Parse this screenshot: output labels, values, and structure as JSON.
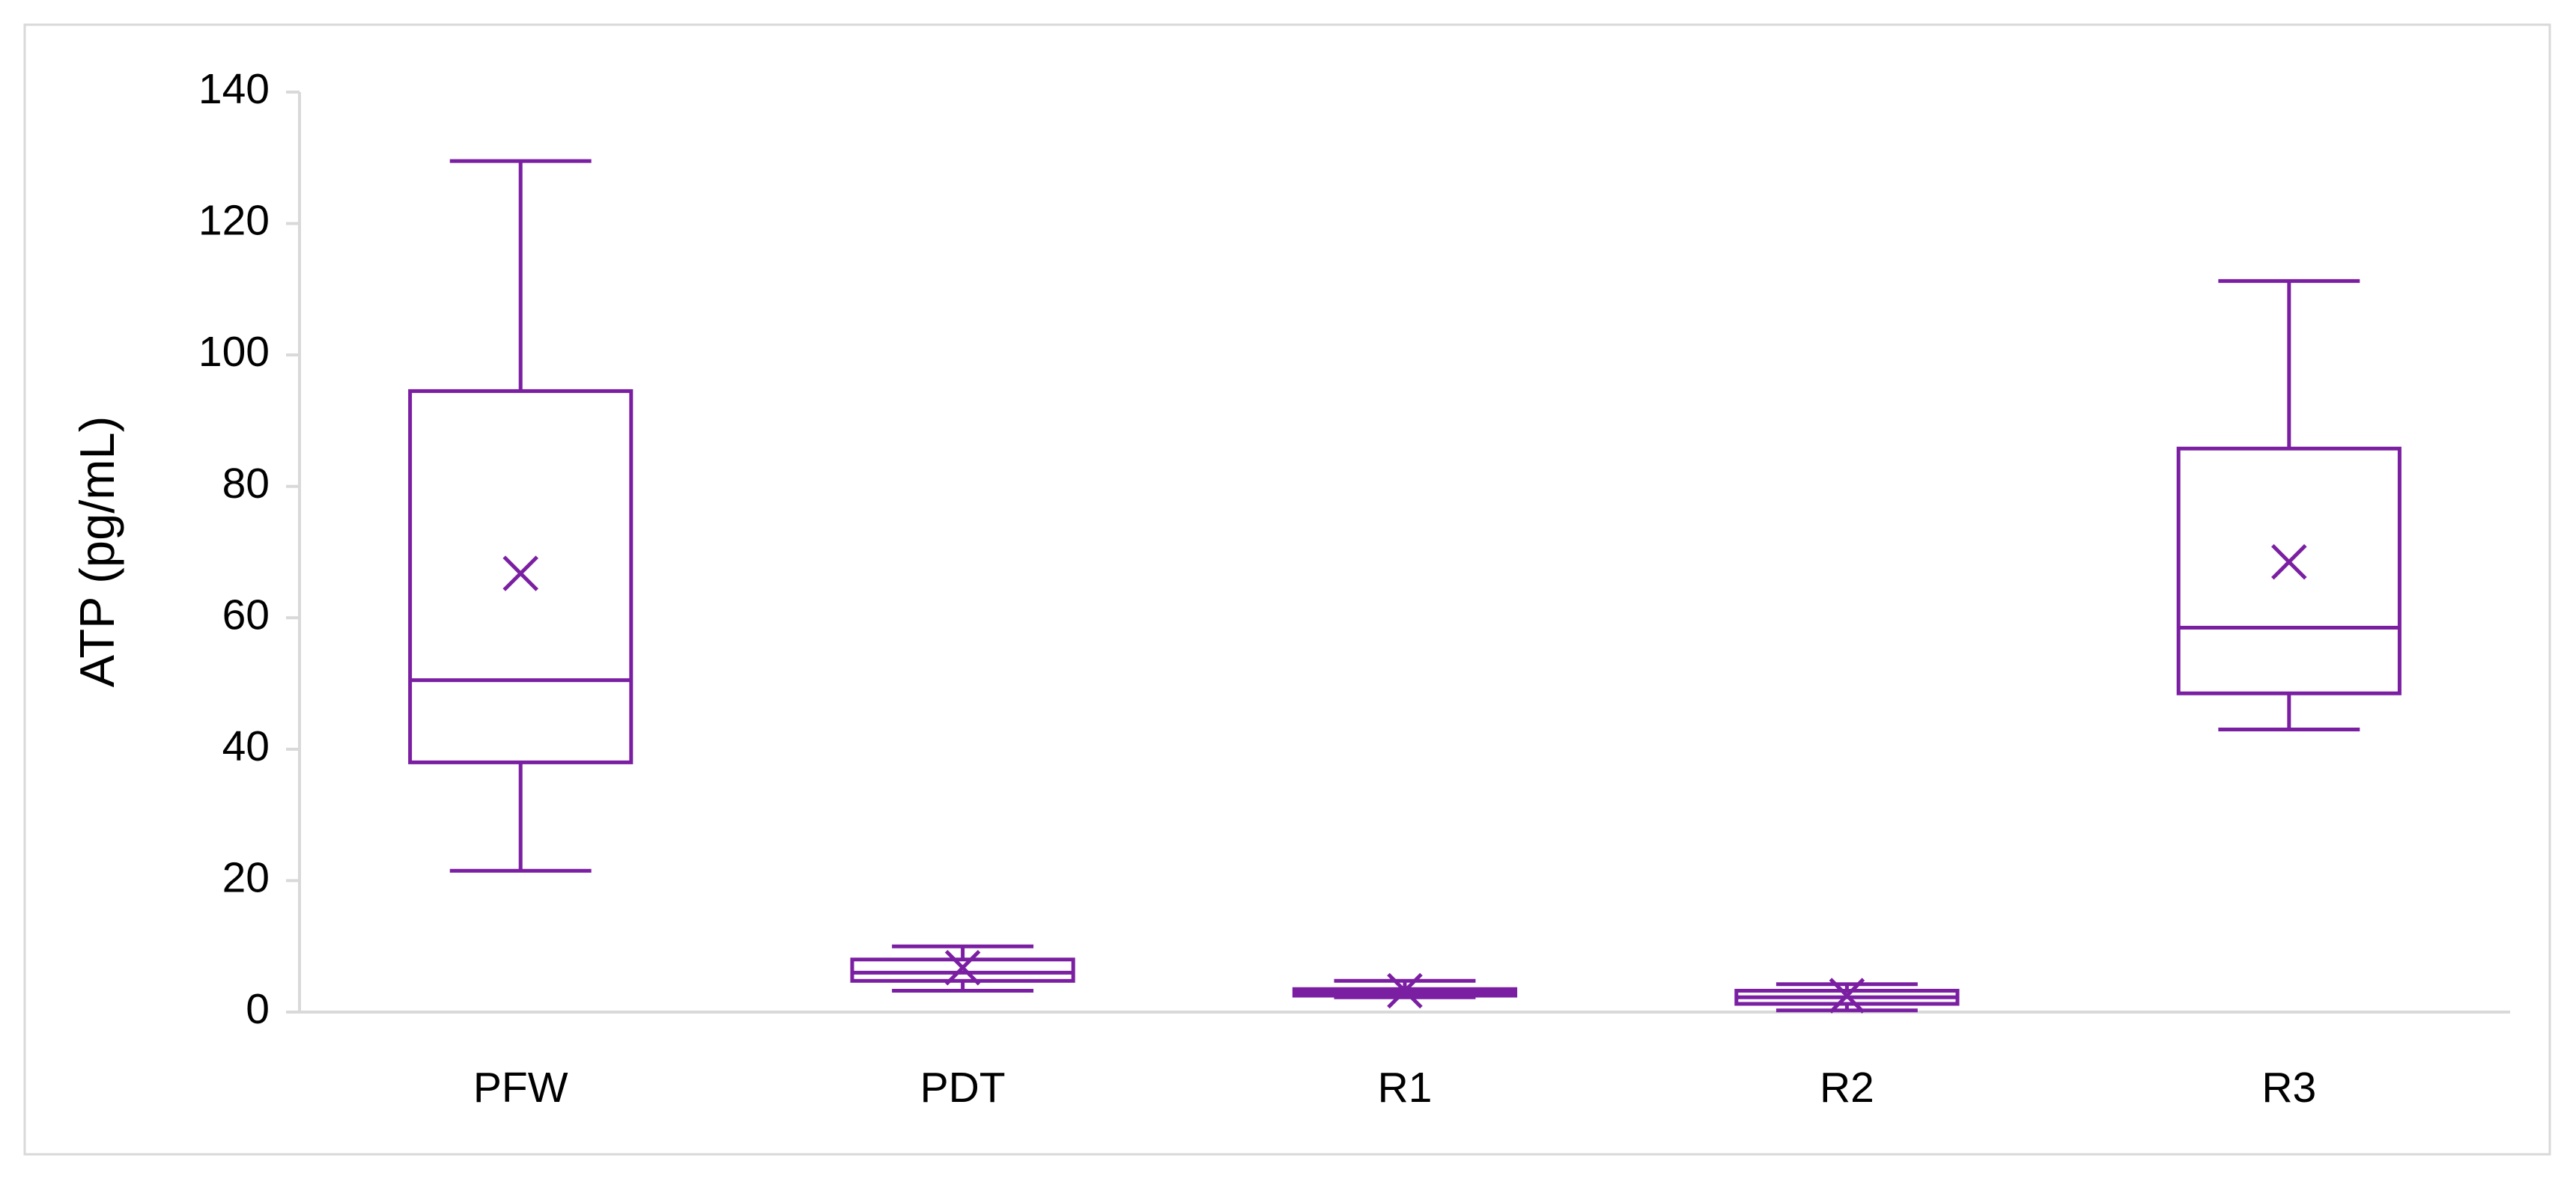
{
  "chart_data": {
    "type": "box",
    "y_label": "ATP (pg/mL)",
    "categories": [
      "PFW",
      "PDT",
      "R1",
      "R2",
      "R3"
    ],
    "min": [
      21.5,
      3.25,
      2.25,
      0.25,
      43
    ],
    "q1": [
      38,
      4.75,
      2.5,
      1.25,
      48.5
    ],
    "median": [
      50.5,
      6,
      3,
      2.25,
      58.5
    ],
    "q3": [
      94.5,
      8,
      3.5,
      3.25,
      85.75
    ],
    "max": [
      129.5,
      10,
      4.75,
      4.25,
      111.25
    ],
    "mean": [
      66.75,
      6.75,
      3.25,
      2.5,
      68.5
    ],
    "color": "#7b1fa2",
    "ylim": [
      0,
      140
    ],
    "yticks": [
      0,
      20,
      40,
      60,
      80,
      100,
      120,
      140
    ],
    "grid": false
  }
}
